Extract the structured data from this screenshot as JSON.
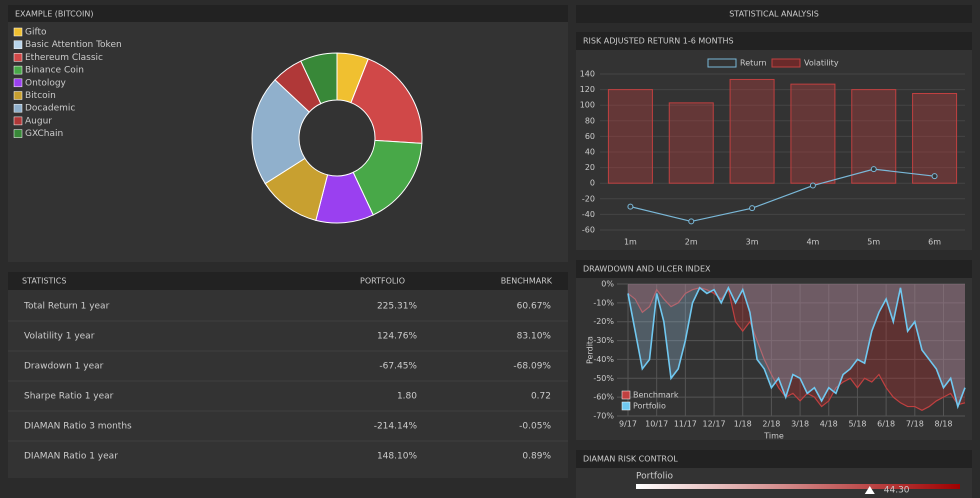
{
  "donut": {
    "type": "pie",
    "title": "EXAMPLE (BITCOIN)",
    "categories": [
      "Gifto",
      "Basic Attention Token",
      "Ethereum Classic",
      "Binance Coin",
      "Ontology",
      "Bitcoin",
      "Docademic",
      "Augur",
      "GXChain"
    ],
    "values": [
      6,
      0,
      20,
      17,
      11,
      12,
      21,
      6,
      7
    ],
    "colors": [
      "#f0c030",
      "#b8d4ea",
      "#d04848",
      "#48a848",
      "#9a40f0",
      "#c8a030",
      "#90b0cc",
      "#b03838",
      "#388838"
    ]
  },
  "stats": {
    "header": [
      "STATISTICS",
      "PORTFOLIO",
      "BENCHMARK"
    ],
    "rows": [
      [
        "Total Return 1 year",
        "225.31%",
        "60.67%"
      ],
      [
        "Volatility 1 year",
        "124.76%",
        "83.10%"
      ],
      [
        "Drawdown 1 year",
        "-67.45%",
        "-68.09%"
      ],
      [
        "Sharpe Ratio 1 year",
        "1.80",
        "0.72"
      ],
      [
        "DIAMAN Ratio 3 months",
        "-214.14%",
        "-0.05%"
      ],
      [
        "DIAMAN Ratio 1 year",
        "148.10%",
        "0.89%"
      ]
    ]
  },
  "analysis_title": "STATISTICAL ANALYSIS",
  "risk": {
    "type": "bar",
    "title": "RISK ADJUSTED RETURN 1-6 MONTHS",
    "categories": [
      "1m",
      "2m",
      "3m",
      "4m",
      "5m",
      "6m"
    ],
    "series": [
      {
        "name": "Return",
        "type": "line",
        "color": "#7ab8d8",
        "values": [
          -30,
          -49,
          -32,
          -3,
          18,
          9
        ]
      },
      {
        "name": "Volatility",
        "type": "bar",
        "color": "#c04040",
        "values": [
          120,
          103,
          133,
          127,
          120,
          115
        ]
      }
    ],
    "ylim": [
      -60,
      140
    ],
    "yticks": [
      -60,
      -40,
      -20,
      0,
      20,
      40,
      60,
      80,
      100,
      120,
      140
    ],
    "grid": true
  },
  "drawdown": {
    "type": "line",
    "title": "DRAWDOWN AND ULCER INDEX",
    "x_label": "Time",
    "y_label": "Perdita",
    "categories": [
      "9/17",
      null,
      null,
      null,
      "10/17",
      null,
      null,
      null,
      "11/17",
      null,
      null,
      null,
      "12/17",
      null,
      null,
      null,
      "1/18",
      null,
      null,
      null,
      "2/18",
      null,
      null,
      null,
      "3/18",
      null,
      null,
      null,
      "4/18",
      null,
      null,
      null,
      "5/18",
      null,
      null,
      null,
      "6/18",
      null,
      null,
      null,
      "7/18",
      null,
      null,
      null,
      "8/18",
      null,
      null,
      null
    ],
    "series": [
      {
        "name": "Benchmark",
        "color": "#c04040",
        "values": [
          -5,
          -8,
          -15,
          -12,
          -3,
          -8,
          -12,
          -10,
          -5,
          -3,
          -2,
          -3,
          -5,
          -8,
          -3,
          -20,
          -25,
          -20,
          -30,
          -40,
          -48,
          -55,
          -60,
          -58,
          -62,
          -58,
          -60,
          -65,
          -62,
          -55,
          -52,
          -50,
          -55,
          -50,
          -52,
          -48,
          -55,
          -60,
          -63,
          -65,
          -65,
          -67,
          -65,
          -62,
          -60,
          -58,
          -64,
          -63
        ]
      },
      {
        "name": "Portfolio",
        "color": "#70c8f0",
        "values": [
          -5,
          -25,
          -45,
          -40,
          -5,
          -20,
          -50,
          -45,
          -30,
          -10,
          -2,
          -5,
          -3,
          -10,
          -2,
          -10,
          -3,
          -15,
          -40,
          -45,
          -55,
          -50,
          -60,
          -48,
          -50,
          -58,
          -55,
          -62,
          -55,
          -58,
          -48,
          -45,
          -40,
          -42,
          -25,
          -15,
          -8,
          -20,
          -2,
          -25,
          -20,
          -35,
          -40,
          -45,
          -55,
          -50,
          -65,
          -55
        ]
      }
    ],
    "ylim": [
      -70,
      0
    ],
    "yticks": [
      {
        "value": 0,
        "label": "0%"
      },
      {
        "value": -10,
        "label": "-10%"
      },
      {
        "value": -20,
        "label": "-20%"
      },
      {
        "value": -30,
        "label": "-30%"
      },
      {
        "value": -40,
        "label": "-40%"
      },
      {
        "value": -50,
        "label": "-50%"
      },
      {
        "value": -60,
        "label": "-60%"
      },
      {
        "value": -70,
        "label": "-70%"
      }
    ],
    "grid": true
  },
  "risk_control": {
    "title": "DIAMAN RISK CONTROL",
    "label": "Portfolio",
    "value": 44.3,
    "value_label": "44.30",
    "xlim": [
      -100,
      100
    ]
  }
}
